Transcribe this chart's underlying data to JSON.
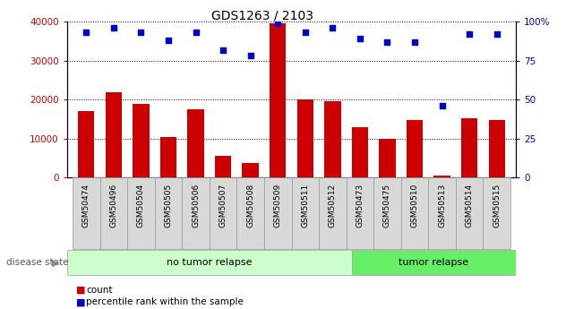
{
  "title": "GDS1263 / 2103",
  "samples": [
    "GSM50474",
    "GSM50496",
    "GSM50504",
    "GSM50505",
    "GSM50506",
    "GSM50507",
    "GSM50508",
    "GSM50509",
    "GSM50511",
    "GSM50512",
    "GSM50473",
    "GSM50475",
    "GSM50510",
    "GSM50513",
    "GSM50514",
    "GSM50515"
  ],
  "counts": [
    17000,
    22000,
    19000,
    10500,
    17500,
    5500,
    3800,
    39500,
    20000,
    19500,
    13000,
    10000,
    14800,
    500,
    15200,
    14700
  ],
  "percentiles": [
    93,
    96,
    93,
    88,
    93,
    82,
    78,
    99,
    93,
    96,
    89,
    87,
    87,
    46,
    92,
    92
  ],
  "no_relapse_count": 10,
  "tumor_relapse_count": 6,
  "bar_color": "#cc0000",
  "dot_color": "#0000cc",
  "left_axis_color": "#cc0000",
  "right_axis_color": "#0000cc",
  "ylim_left": [
    0,
    40000
  ],
  "ylim_right": [
    0,
    100
  ],
  "yticks_left": [
    0,
    10000,
    20000,
    30000,
    40000
  ],
  "ytick_labels_left": [
    "0",
    "10000",
    "20000",
    "30000",
    "40000"
  ],
  "yticks_right": [
    0,
    25,
    50,
    75,
    100
  ],
  "ytick_labels_right": [
    "0",
    "25",
    "50",
    "75",
    "100%"
  ],
  "no_relapse_label": "no tumor relapse",
  "tumor_relapse_label": "tumor relapse",
  "disease_state_label": "disease state",
  "legend_count_label": "count",
  "legend_percentile_label": "percentile rank within the sample",
  "no_relapse_color": "#ccffcc",
  "tumor_relapse_color": "#66ee66",
  "xtick_bg_color": "#d8d8d8",
  "bar_width": 0.6
}
